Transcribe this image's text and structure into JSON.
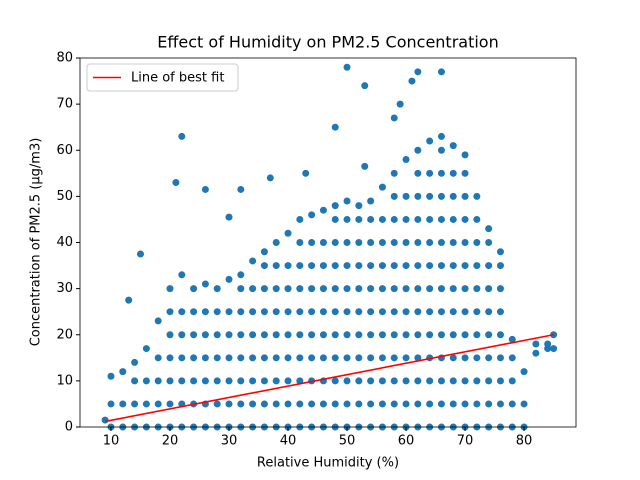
{
  "chart_data": {
    "type": "scatter",
    "title": "Effect of Humidity on PM2.5 Concentration",
    "x_label": "Relative Humidity (%)",
    "y_label": "Concentration of PM2.5 (μg/m3)",
    "color": "#1f77b4",
    "x": [
      10,
      10,
      10,
      12,
      12,
      12,
      14,
      14,
      14,
      14,
      16,
      16,
      16,
      16,
      18,
      18,
      18,
      18,
      18,
      20,
      20,
      20,
      20,
      20,
      20,
      20,
      22,
      22,
      22,
      22,
      22,
      22,
      22,
      24,
      24,
      24,
      24,
      24,
      24,
      24,
      26,
      26,
      26,
      26,
      26,
      26,
      26,
      28,
      28,
      28,
      28,
      28,
      28,
      28,
      30,
      30,
      30,
      30,
      30,
      30,
      30,
      32,
      32,
      32,
      32,
      32,
      32,
      32,
      32,
      34,
      34,
      34,
      34,
      34,
      34,
      34,
      34,
      36,
      36,
      36,
      36,
      36,
      36,
      36,
      36,
      36,
      38,
      38,
      38,
      38,
      38,
      38,
      38,
      38,
      38,
      40,
      40,
      40,
      40,
      40,
      40,
      40,
      40,
      40,
      42,
      42,
      42,
      42,
      42,
      42,
      42,
      42,
      42,
      42,
      44,
      44,
      44,
      44,
      44,
      44,
      44,
      44,
      44,
      44,
      46,
      46,
      46,
      46,
      46,
      46,
      46,
      46,
      46,
      46,
      48,
      48,
      48,
      48,
      48,
      48,
      48,
      48,
      48,
      48,
      48,
      50,
      50,
      50,
      50,
      50,
      50,
      50,
      50,
      50,
      50,
      50,
      52,
      52,
      52,
      52,
      52,
      52,
      52,
      52,
      52,
      52,
      52,
      54,
      54,
      54,
      54,
      54,
      54,
      54,
      54,
      54,
      54,
      54,
      56,
      56,
      56,
      56,
      56,
      56,
      56,
      56,
      56,
      56,
      56,
      58,
      58,
      58,
      58,
      58,
      58,
      58,
      58,
      58,
      58,
      58,
      58,
      60,
      60,
      60,
      60,
      60,
      60,
      60,
      60,
      60,
      60,
      60,
      60,
      62,
      62,
      62,
      62,
      62,
      62,
      62,
      62,
      62,
      62,
      62,
      62,
      62,
      64,
      64,
      64,
      64,
      64,
      64,
      64,
      64,
      64,
      64,
      64,
      64,
      64,
      66,
      66,
      66,
      66,
      66,
      66,
      66,
      66,
      66,
      66,
      66,
      66,
      66,
      66,
      68,
      68,
      68,
      68,
      68,
      68,
      68,
      68,
      68,
      68,
      68,
      68,
      68,
      70,
      70,
      70,
      70,
      70,
      70,
      70,
      70,
      70,
      70,
      70,
      70,
      70,
      72,
      72,
      72,
      72,
      72,
      72,
      72,
      72,
      72,
      72,
      72,
      74,
      74,
      74,
      74,
      74,
      74,
      74,
      74,
      74,
      74,
      76,
      76,
      76,
      76,
      76,
      76,
      76,
      76,
      76,
      78,
      78,
      78,
      78,
      78,
      80,
      80,
      80,
      82,
      82,
      84,
      84,
      13,
      15,
      22,
      21,
      26,
      32,
      30,
      37,
      43,
      48,
      50,
      53,
      53,
      58,
      62,
      61,
      66,
      59,
      85,
      85,
      9
    ],
    "values": [
      0,
      5,
      11,
      0,
      5,
      12,
      0,
      5,
      10,
      14,
      0,
      5,
      10,
      17,
      0,
      5,
      10,
      15,
      23,
      0,
      5,
      10,
      15,
      20,
      25,
      30,
      0,
      5,
      10,
      15,
      20,
      25,
      33,
      0,
      5,
      10,
      15,
      20,
      25,
      30,
      0,
      5,
      10,
      15,
      20,
      25,
      31,
      0,
      5,
      10,
      15,
      20,
      25,
      30,
      0,
      5,
      10,
      15,
      20,
      25,
      32,
      0,
      5,
      10,
      15,
      20,
      25,
      30,
      33,
      0,
      5,
      10,
      15,
      20,
      25,
      30,
      36,
      0,
      5,
      10,
      15,
      20,
      25,
      30,
      35,
      38,
      0,
      5,
      10,
      15,
      20,
      25,
      30,
      35,
      40,
      0,
      5,
      10,
      15,
      20,
      25,
      30,
      35,
      42,
      0,
      5,
      10,
      15,
      20,
      25,
      30,
      35,
      40,
      45,
      0,
      5,
      10,
      15,
      20,
      25,
      30,
      35,
      40,
      46,
      0,
      5,
      10,
      15,
      20,
      25,
      30,
      35,
      40,
      47,
      0,
      5,
      10,
      15,
      20,
      25,
      30,
      35,
      40,
      45,
      48,
      0,
      5,
      10,
      15,
      20,
      25,
      30,
      35,
      40,
      45,
      49,
      0,
      5,
      10,
      15,
      20,
      25,
      30,
      35,
      40,
      45,
      48,
      0,
      5,
      10,
      15,
      20,
      25,
      30,
      35,
      40,
      45,
      49,
      0,
      5,
      10,
      15,
      20,
      25,
      30,
      35,
      40,
      45,
      52,
      0,
      5,
      10,
      15,
      20,
      25,
      30,
      35,
      40,
      45,
      50,
      55,
      0,
      5,
      10,
      15,
      20,
      25,
      30,
      35,
      40,
      45,
      50,
      58,
      0,
      5,
      10,
      15,
      20,
      25,
      30,
      35,
      40,
      45,
      50,
      55,
      60,
      0,
      5,
      10,
      15,
      20,
      25,
      30,
      35,
      40,
      45,
      50,
      55,
      62,
      0,
      5,
      10,
      15,
      20,
      25,
      30,
      35,
      40,
      45,
      50,
      55,
      60,
      63,
      0,
      5,
      10,
      15,
      20,
      25,
      30,
      35,
      40,
      45,
      50,
      55,
      61,
      0,
      5,
      10,
      15,
      20,
      25,
      30,
      35,
      40,
      45,
      50,
      55,
      59,
      0,
      5,
      10,
      15,
      20,
      25,
      30,
      35,
      40,
      45,
      50,
      0,
      5,
      10,
      15,
      20,
      25,
      30,
      35,
      40,
      43,
      0,
      5,
      10,
      15,
      20,
      25,
      30,
      35,
      38,
      0,
      5,
      10,
      15,
      19,
      0,
      5,
      12,
      16,
      18,
      17,
      18,
      27.5,
      37.5,
      63,
      53,
      51.5,
      51.5,
      45.5,
      54,
      55,
      65,
      78,
      74,
      56.5,
      67,
      77,
      75,
      77,
      70,
      20,
      17,
      1.5
    ],
    "fit": {
      "name": "Line of best fit",
      "color": "#ff0000",
      "x": [
        9,
        85
      ],
      "values": [
        1.2,
        20
      ]
    },
    "xlim": [
      4.75,
      88.8
    ],
    "ylim": [
      0,
      80
    ],
    "xticks": [
      10,
      20,
      30,
      40,
      50,
      60,
      70,
      80
    ],
    "yticks": [
      0,
      10,
      20,
      30,
      40,
      50,
      60,
      70,
      80
    ],
    "legend": "upper left"
  }
}
